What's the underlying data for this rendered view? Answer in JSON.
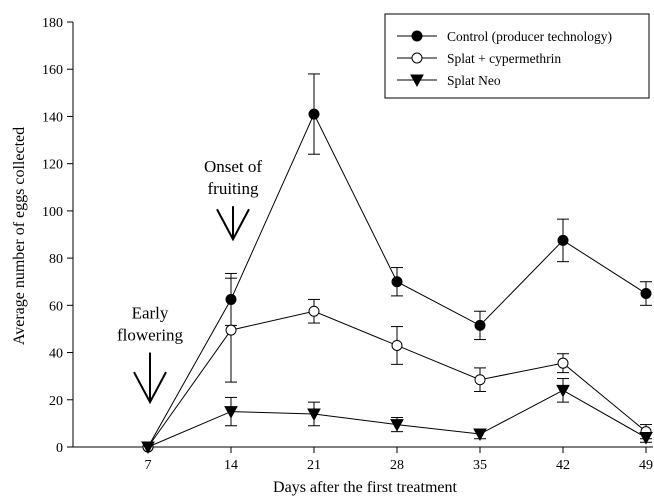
{
  "chart_data": {
    "type": "line",
    "title": "",
    "xlabel": "Days after the first treatment",
    "ylabel": "Average number of eggs collected",
    "x": [
      7,
      14,
      21,
      28,
      35,
      42,
      49
    ],
    "xlim": [
      0,
      49
    ],
    "ylim": [
      0,
      180
    ],
    "xticks": [
      7,
      14,
      21,
      28,
      35,
      42,
      49
    ],
    "yticks": [
      0,
      20,
      40,
      60,
      80,
      100,
      120,
      140,
      160,
      180
    ],
    "grid": false,
    "legend_position": "top-right",
    "series": [
      {
        "name": "Control (producer technology)",
        "marker": "filled-circle",
        "values": [
          0,
          62.5,
          141,
          70,
          51.5,
          87.5,
          65
        ],
        "error": [
          0,
          11,
          17,
          6,
          6,
          9,
          5
        ]
      },
      {
        "name": "Splat + cypermethrin",
        "marker": "open-circle",
        "values": [
          0,
          49.5,
          57.5,
          43,
          28.5,
          35.5,
          6.5
        ],
        "error": [
          0,
          22,
          5,
          8,
          5,
          4,
          3
        ]
      },
      {
        "name": "Splat Neo",
        "marker": "filled-triangle-down",
        "values": [
          0,
          15,
          14,
          9.5,
          5.5,
          24,
          4
        ],
        "error": [
          0,
          6,
          5,
          3,
          2,
          5,
          2
        ]
      }
    ],
    "annotations": [
      {
        "lines": [
          "Early",
          "flowering"
        ],
        "arrow_day": 7,
        "arrow_from": 40,
        "arrow_to": 19
      },
      {
        "lines": [
          "Onset of",
          "fruiting"
        ],
        "arrow_day": 14,
        "arrow_from": 102,
        "arrow_to": 88
      }
    ]
  }
}
